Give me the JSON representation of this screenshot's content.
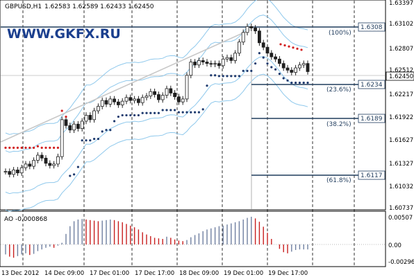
{
  "header": {
    "symbol": "GBPUSD,H1",
    "ohlc": "1.62583 1.62589 1.62433 1.62450"
  },
  "watermark": "WWW.GKFX.RU",
  "colors": {
    "up_bar": "#6f7fa0",
    "down_bar": "#c81e1e",
    "candle": "#1f1f1f",
    "band": "#8ec8ec",
    "sar": "#1e3a6e",
    "sar_red": "#d22020",
    "fib": "#1f3b5c",
    "trend": "#c8c8c8",
    "grid": "#000000"
  },
  "main_axis": {
    "labels": [
      "1.63397",
      "1.63102",
      "1.62807",
      "1.62512",
      "1.62217",
      "1.61922",
      "1.61627",
      "1.61327",
      "1.61032",
      "1.60737"
    ],
    "current_price": "1.62450",
    "ylim": [
      1.6059,
      1.634
    ]
  },
  "fib": [
    {
      "pct": "(100%)",
      "price": "1.6308"
    },
    {
      "pct": "(23.6%)",
      "price": "1.6234"
    },
    {
      "pct": "(38.2%)",
      "price": "1.6189"
    },
    {
      "pct": "(61.8%)",
      "price": "1.6117"
    }
  ],
  "indicator": {
    "title": "AO -0.000868",
    "axis_labels": [
      "0.00507",
      "0.00",
      "-0.00296"
    ]
  },
  "x_axis": {
    "labels": [
      "13 Dec 2012",
      "14 Dec 09:00",
      "17 Dec 01:00",
      "17 Dec 17:00",
      "18 Dec 09:00",
      "19 Dec 01:00",
      "19 Dec 17:00"
    ]
  },
  "chart_data": {
    "type": "candlestick",
    "title": "GBPUSD,H1",
    "ylim": [
      1.6059,
      1.634
    ],
    "close": [
      1.611,
      1.6106,
      1.6112,
      1.6108,
      1.6115,
      1.612,
      1.6117,
      1.6125,
      1.6132,
      1.6128,
      1.6121,
      1.6118,
      1.612,
      1.613,
      1.618,
      1.6172,
      1.6166,
      1.6174,
      1.6168,
      1.6178,
      1.6186,
      1.618,
      1.6192,
      1.6198,
      1.6206,
      1.6201,
      1.6208,
      1.6204,
      1.62,
      1.6205,
      1.621,
      1.6206,
      1.6208,
      1.6203,
      1.621,
      1.6212,
      1.6218,
      1.6214,
      1.6207,
      1.6213,
      1.6222,
      1.6216,
      1.6211,
      1.6204,
      1.6208,
      1.624,
      1.6258,
      1.6254,
      1.626,
      1.6258,
      1.6256,
      1.6255,
      1.6256,
      1.6253,
      1.6262,
      1.6264,
      1.626,
      1.627,
      1.6285,
      1.6298,
      1.6306,
      1.6304,
      1.63,
      1.6284,
      1.6278,
      1.627,
      1.6265,
      1.6262,
      1.6256,
      1.625,
      1.6247,
      1.6244,
      1.625,
      1.6254,
      1.6256,
      1.6245
    ],
    "ao": [
      -0.0018,
      -0.0022,
      -0.0024,
      -0.0021,
      -0.0018,
      -0.0016,
      -0.0019,
      -0.0017,
      -0.0012,
      -0.0009,
      -0.0006,
      -0.0004,
      -0.0006,
      -0.0002,
      0.0003,
      0.0019,
      0.0033,
      0.0042,
      0.0045,
      0.0046,
      0.0045,
      0.0044,
      0.0043,
      0.0042,
      0.0043,
      0.0044,
      0.0045,
      0.0044,
      0.0042,
      0.004,
      0.0037,
      0.0034,
      0.0031,
      0.0027,
      0.0022,
      0.0018,
      0.0015,
      0.0012,
      0.0011,
      0.001,
      0.0014,
      0.0012,
      0.0009,
      0.0007,
      0.0006,
      0.0008,
      0.0013,
      0.0017,
      0.002,
      0.0024,
      0.0027,
      0.0029,
      0.0031,
      0.0033,
      0.0034,
      0.0036,
      0.0038,
      0.004,
      0.0042,
      0.0045,
      0.0048,
      0.005,
      0.0047,
      0.0041,
      0.0032,
      0.0021,
      0.001,
      0.0,
      -0.0008,
      -0.0014,
      -0.0016,
      -0.0013,
      -0.001,
      -0.0009,
      -0.0009,
      -0.0009
    ]
  }
}
